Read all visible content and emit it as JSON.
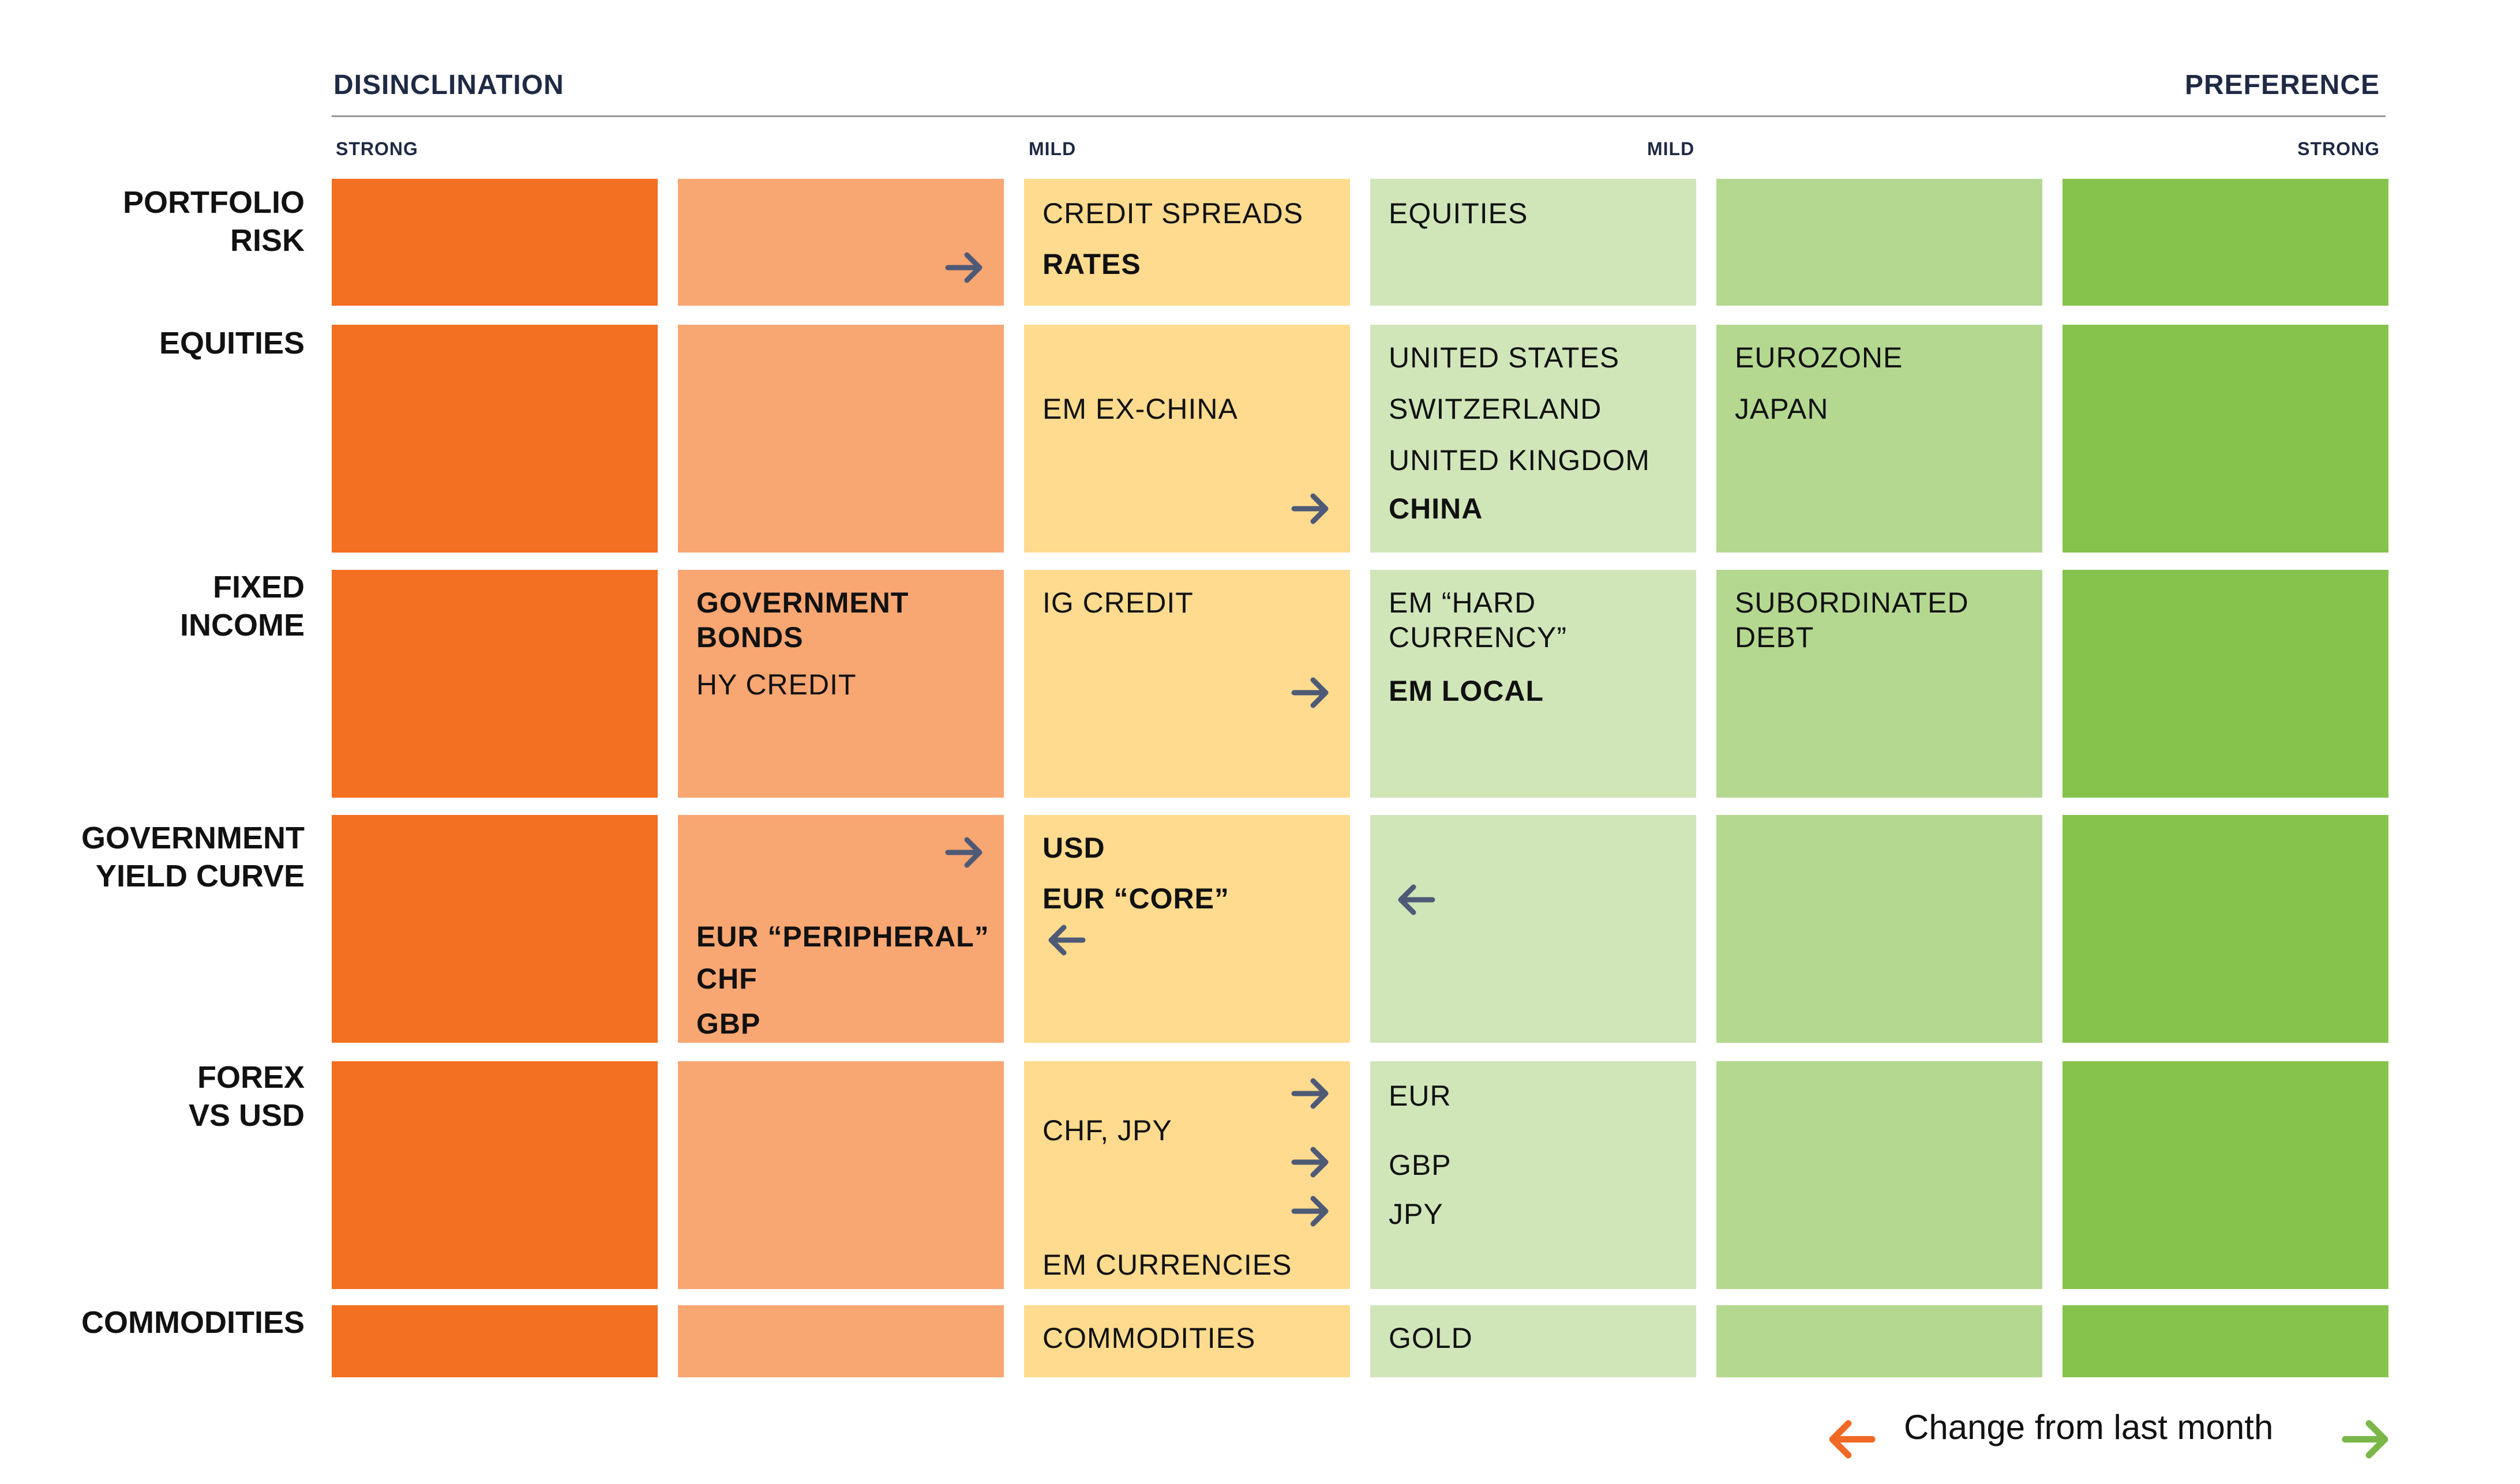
{
  "header": {
    "left": "DISINCLINATION",
    "right": "PREFERENCE",
    "strong_left": "STRONG",
    "mild_left": "MILD",
    "mild_right": "MILD",
    "strong_right": "STRONG"
  },
  "rows": [
    {
      "label": "PORTFOLIO\nRISK"
    },
    {
      "label": "EQUITIES"
    },
    {
      "label": "FIXED\nINCOME"
    },
    {
      "label": "GOVERNMENT\nYIELD CURVE"
    },
    {
      "label": "FOREX\nVS USD"
    },
    {
      "label": "COMMODITIES"
    }
  ],
  "items": {
    "r0_credit_spreads": "CREDIT SPREADS",
    "r0_rates": "RATES",
    "r0_equities": "EQUITIES",
    "r1_em_ex_china": "EM EX-CHINA",
    "r1_united_states": "UNITED STATES",
    "r1_switzerland": "SWITZERLAND",
    "r1_united_kingdom": "UNITED KINGDOM",
    "r1_china": "CHINA",
    "r1_eurozone": "EUROZONE",
    "r1_japan": "JAPAN",
    "r2_government_bonds": "GOVERNMENT\nBONDS",
    "r2_hy_credit": "HY CREDIT",
    "r2_ig_credit": "IG CREDIT",
    "r2_em_hard": "EM “HARD\nCURRENCY”",
    "r2_em_local": "EM LOCAL",
    "r2_subordinated": "SUBORDINATED\nDEBT",
    "r3_eur_peripheral": "EUR “PERIPHERAL”",
    "r3_chf": "CHF",
    "r3_gbp": "GBP",
    "r3_usd": "USD",
    "r3_eur_core": "EUR “CORE”",
    "r4_chf_jpy": "CHF, JPY",
    "r4_em_currencies": "EM CURRENCIES",
    "r4_eur": "EUR",
    "r4_gbp": "GBP",
    "r4_jpy": "JPY",
    "r5_commodities": "COMMODITIES",
    "r5_gold": "GOLD"
  },
  "legend": {
    "text": "Change from last month"
  },
  "colors": {
    "strong_disinclination": "#f36f21",
    "disinclination": "#f8a672",
    "mild_disinclination": "#fedb8e",
    "mild_preference": "#d0e6b9",
    "preference": "#b5d890",
    "strong_preference": "#86c34c",
    "arrow_change": "#4e5a76",
    "legend_left_arrow": "#f06a25",
    "legend_right_arrow": "#7ab648"
  }
}
